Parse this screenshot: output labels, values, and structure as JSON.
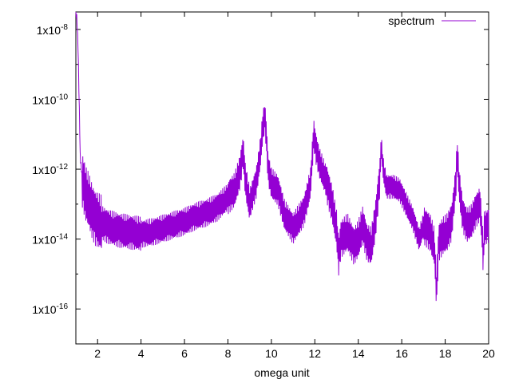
{
  "chart_data": {
    "type": "line",
    "title": "",
    "xlabel": "omega unit",
    "ylabel": "",
    "xlim": [
      1,
      20
    ],
    "ylim_log10": [
      -17,
      -7.5
    ],
    "y_scale": "log",
    "grid": false,
    "legend": {
      "position": "top-right"
    },
    "x_ticks": [
      {
        "value": 2,
        "label": "2"
      },
      {
        "value": 4,
        "label": "4"
      },
      {
        "value": 6,
        "label": "6"
      },
      {
        "value": 8,
        "label": "8"
      },
      {
        "value": 10,
        "label": "10"
      },
      {
        "value": 12,
        "label": "12"
      },
      {
        "value": 14,
        "label": "14"
      },
      {
        "value": 16,
        "label": "16"
      },
      {
        "value": 18,
        "label": "18"
      },
      {
        "value": 20,
        "label": "20"
      }
    ],
    "y_ticks": [
      {
        "exp": -8,
        "base": "1x10",
        "sup": "-8"
      },
      {
        "exp": -10,
        "base": "1x10",
        "sup": "-10"
      },
      {
        "exp": -12,
        "base": "1x10",
        "sup": "-12"
      },
      {
        "exp": -14,
        "base": "1x10",
        "sup": "-14"
      },
      {
        "exp": -16,
        "base": "1x10",
        "sup": "-16"
      }
    ],
    "series": [
      {
        "name": "spectrum",
        "color": "#9400d3",
        "x": [
          1.0,
          1.05,
          1.1,
          1.15,
          1.2,
          1.3,
          1.45,
          1.6,
          1.75,
          1.9,
          2.1,
          2.5,
          3.0,
          3.5,
          4.0,
          4.5,
          5.0,
          5.5,
          6.0,
          6.5,
          7.0,
          7.5,
          8.0,
          8.3,
          8.55,
          8.7,
          8.8,
          9.0,
          9.3,
          9.5,
          9.6,
          9.7,
          9.75,
          9.85,
          10.0,
          10.3,
          10.6,
          11.0,
          11.5,
          11.8,
          11.95,
          12.05,
          12.2,
          12.5,
          12.8,
          13.0,
          13.1,
          13.2,
          13.5,
          13.8,
          14.0,
          14.2,
          14.4,
          14.6,
          14.8,
          15.0,
          15.05,
          15.15,
          15.3,
          15.6,
          15.9,
          16.2,
          16.5,
          16.8,
          17.0,
          17.3,
          17.5,
          17.6,
          17.7,
          17.9,
          18.1,
          18.3,
          18.5,
          18.55,
          18.65,
          18.8,
          19.0,
          19.2,
          19.4,
          19.6,
          19.7,
          19.75,
          19.8,
          20.0
        ],
        "y_log10": [
          -7.5,
          -7.7,
          -8.5,
          -10.0,
          -11.6,
          -12.3,
          -12.7,
          -12.9,
          -13.2,
          -13.4,
          -13.5,
          -13.65,
          -13.75,
          -13.8,
          -13.85,
          -13.8,
          -13.7,
          -13.6,
          -13.5,
          -13.35,
          -13.25,
          -13.1,
          -12.8,
          -12.6,
          -12.1,
          -11.5,
          -12.3,
          -13.0,
          -12.4,
          -11.5,
          -10.8,
          -10.5,
          -10.9,
          -12.0,
          -12.4,
          -12.6,
          -13.3,
          -13.7,
          -13.2,
          -12.4,
          -11.0,
          -11.4,
          -11.8,
          -12.3,
          -13.0,
          -13.7,
          -14.5,
          -14.0,
          -13.8,
          -14.2,
          -14.0,
          -13.6,
          -14.1,
          -14.2,
          -13.4,
          -12.2,
          -11.3,
          -12.0,
          -12.5,
          -12.5,
          -12.6,
          -13.0,
          -13.4,
          -14.0,
          -13.6,
          -13.8,
          -14.2,
          -15.5,
          -14.1,
          -13.9,
          -13.8,
          -13.5,
          -12.3,
          -11.5,
          -12.5,
          -13.3,
          -13.6,
          -13.5,
          -13.2,
          -13.0,
          -13.8,
          -14.6,
          -13.7,
          -13.6
        ]
      }
    ]
  }
}
